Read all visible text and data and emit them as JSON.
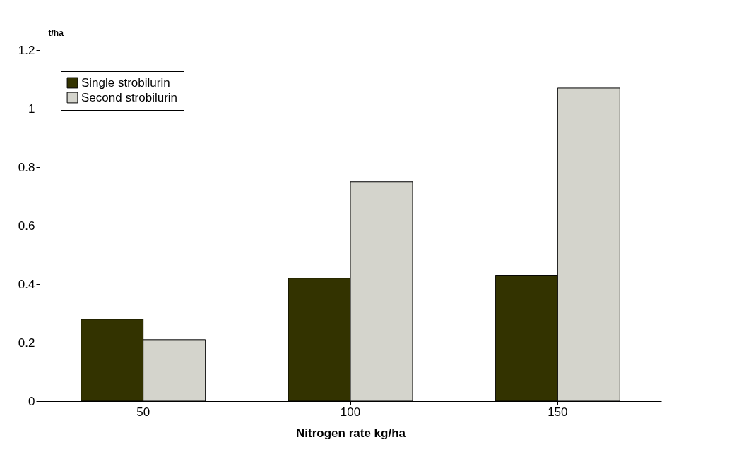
{
  "chart_data": {
    "type": "bar",
    "xlabel": "Nitrogen rate kg/ha",
    "ylabel": "t/ha",
    "categories": [
      "50",
      "100",
      "150"
    ],
    "series": [
      {
        "name": "Single strobilurin",
        "color": "#333300",
        "values": [
          0.28,
          0.42,
          0.43
        ]
      },
      {
        "name": "Second strobilurin",
        "color": "#d4d4cc",
        "values": [
          0.21,
          0.75,
          1.07
        ]
      }
    ],
    "ylim": [
      0,
      1.2
    ],
    "yticks": [
      0,
      0.2,
      0.4,
      0.6,
      0.8,
      1,
      1.2
    ],
    "grid": false,
    "legend": "top left"
  }
}
